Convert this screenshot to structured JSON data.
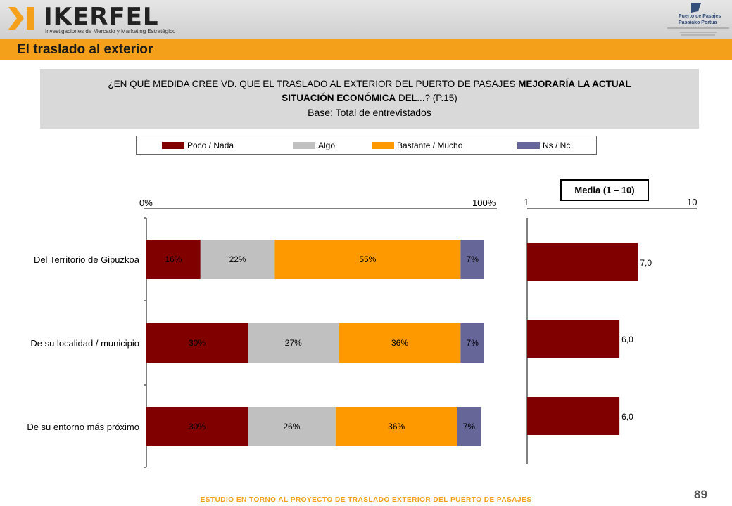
{
  "header": {
    "logo_text": "IKERFEL",
    "logo_tagline": "Investigaciones de Mercado y Marketing Estratégico",
    "partner_logo_line1": "Puerto de Pasajes",
    "partner_logo_line2": "Pasaiako Portua"
  },
  "title": "El traslado al exterior",
  "question": {
    "line1_normal": "¿EN QUÉ MEDIDA CREE VD. QUE EL TRASLADO AL EXTERIOR DEL PUERTO DE PASAJES ",
    "line1_bold": "MEJORARÍA LA ACTUAL",
    "line2_bold": "SITUACIÓN ECONÓMICA",
    "line2_normal": " DEL...? (P.15)",
    "base": "Base: Total de entrevistados"
  },
  "media_label": "Media (1 – 10)",
  "colors": {
    "poco": "#800000",
    "algo": "#c0c0c0",
    "bastante": "#ff9900",
    "ns": "#666699"
  },
  "chart_data": [
    {
      "type": "bar",
      "orientation": "horizontal",
      "stacked": true,
      "axis_labels": [
        "0%",
        "100%"
      ],
      "xlim": [
        0,
        100
      ],
      "categories": [
        "Del Territorio de Gipuzkoa",
        "De su localidad / municipio",
        "De su entorno más próximo"
      ],
      "series": [
        {
          "name": "Poco / Nada",
          "color": "#800000",
          "values": [
            16,
            30,
            30
          ],
          "labels": [
            "16%",
            "30%",
            "30%"
          ]
        },
        {
          "name": "Algo",
          "color": "#c0c0c0",
          "values": [
            22,
            27,
            26
          ],
          "labels": [
            "22%",
            "27%",
            "26%"
          ]
        },
        {
          "name": "Bastante / Mucho",
          "color": "#ff9900",
          "values": [
            55,
            36,
            36
          ],
          "labels": [
            "55%",
            "36%",
            "36%"
          ]
        },
        {
          "name": "Ns / Nc",
          "color": "#666699",
          "values": [
            7,
            7,
            7
          ],
          "labels": [
            "7%",
            "7%",
            "7%"
          ]
        }
      ],
      "legend": "top"
    },
    {
      "type": "bar",
      "orientation": "horizontal",
      "title": "Media (1 – 10)",
      "axis_labels": [
        "1",
        "10"
      ],
      "xlim": [
        1,
        10
      ],
      "values": [
        7.0,
        6.0,
        6.0
      ],
      "labels": [
        "7,0",
        "6,0",
        "6,0"
      ],
      "color": "#800000"
    }
  ],
  "page_number": "89",
  "footer": "ESTUDIO EN TORNO AL PROYECTO DE TRASLADO EXTERIOR DEL PUERTO DE PASAJES"
}
